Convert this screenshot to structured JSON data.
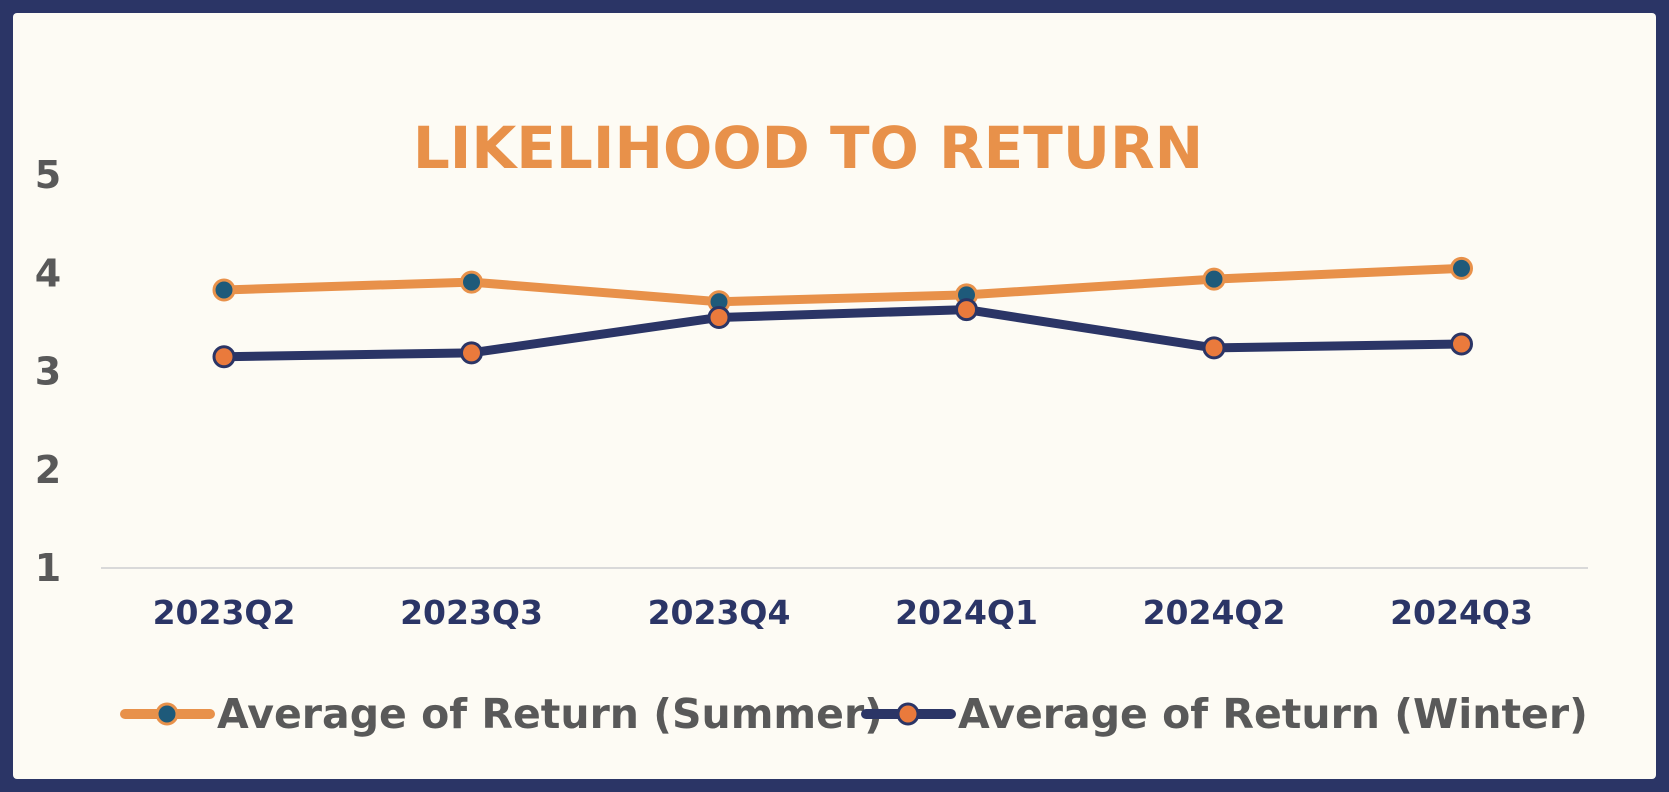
{
  "chart_data": {
    "type": "line",
    "title": "LIKELIHOOD TO RETURN",
    "categories": [
      "2023Q2",
      "2023Q3",
      "2023Q4",
      "2024Q1",
      "2024Q2",
      "2024Q3"
    ],
    "yticks": [
      "1",
      "2",
      "3",
      "4",
      "5"
    ],
    "ylim": [
      1,
      5
    ],
    "series": [
      {
        "name": "Average of Return (Summer)",
        "values": [
          3.83,
          3.91,
          3.71,
          3.78,
          3.94,
          4.05
        ],
        "line_color": "#e8914a",
        "marker_color": "#1e5a7a"
      },
      {
        "name": "Average of Return (Winter)",
        "values": [
          3.15,
          3.19,
          3.55,
          3.63,
          3.24,
          3.28
        ],
        "line_color": "#2b3566",
        "marker_color": "#ea7a3c"
      }
    ],
    "legend_position": "bottom",
    "grid": false
  }
}
